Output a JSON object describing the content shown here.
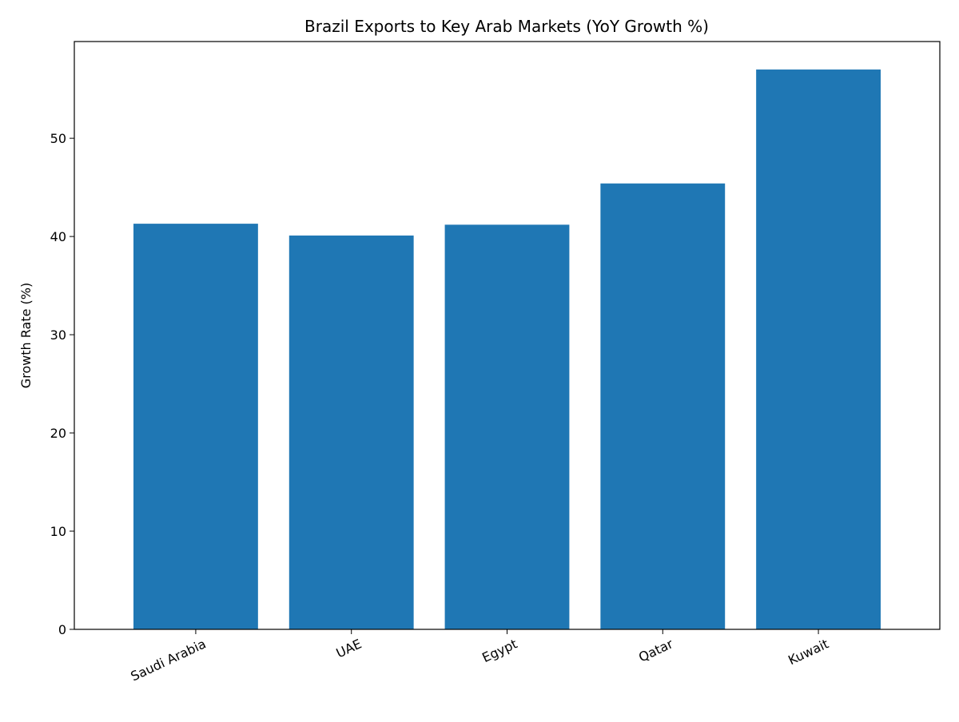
{
  "chart_data": {
    "type": "bar",
    "title": "Brazil Exports to Key Arab Markets (YoY Growth %)",
    "xlabel": "",
    "ylabel": "Growth Rate (%)",
    "categories": [
      "Saudi Arabia",
      "UAE",
      "Egypt",
      "Qatar",
      "Kuwait"
    ],
    "values": [
      41.3,
      40.1,
      41.2,
      45.4,
      57.0
    ],
    "ylim": [
      0,
      59.85
    ],
    "yticks": [
      0,
      10,
      20,
      30,
      40,
      50
    ],
    "grid": false,
    "bar_color": "#1f77b4"
  }
}
